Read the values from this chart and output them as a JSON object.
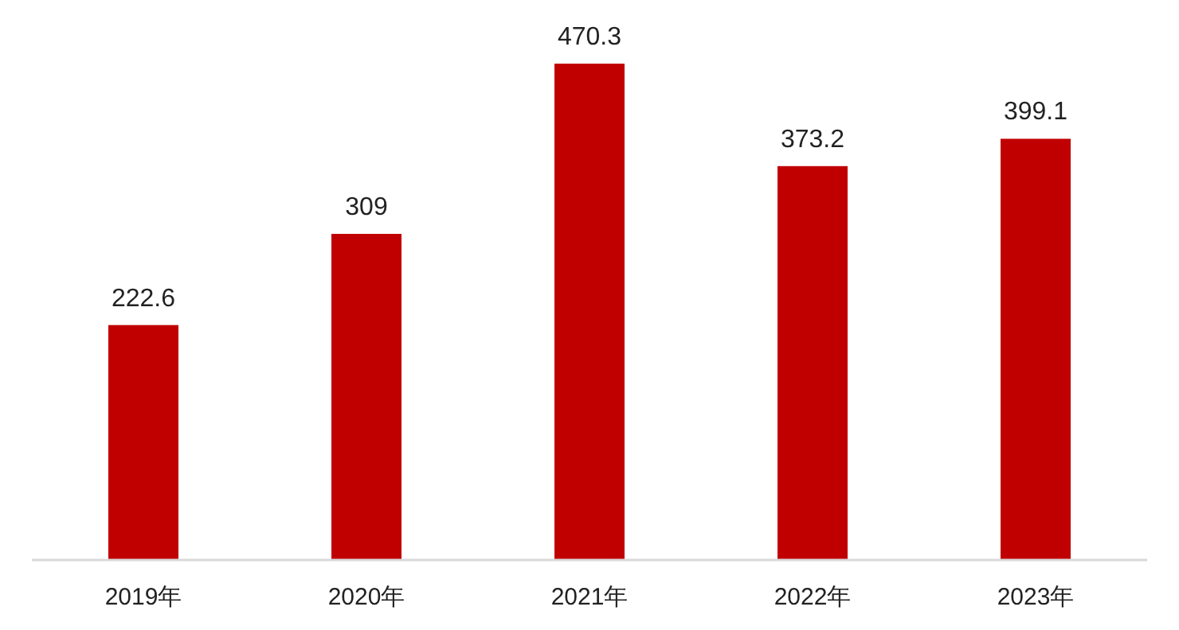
{
  "chart_data": {
    "type": "bar",
    "categories": [
      "2019年",
      "2020年",
      "2021年",
      "2022年",
      "2023年"
    ],
    "values": [
      222.6,
      309,
      470.3,
      373.2,
      399.1
    ],
    "color": "#c00000",
    "data_labels": true,
    "grid": false
  }
}
